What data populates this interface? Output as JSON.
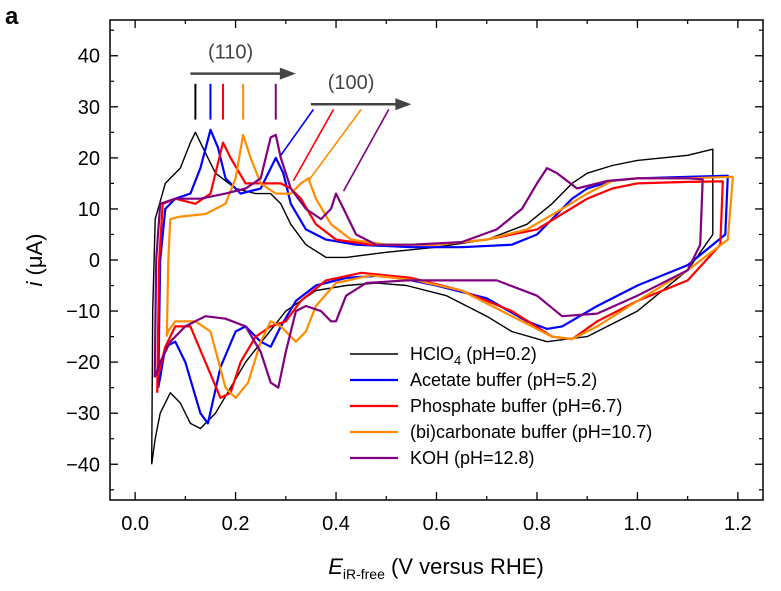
{
  "panel_label": "a",
  "chart_data": {
    "type": "line",
    "xlabel": {
      "main": "E",
      "subscript": "iR-free",
      "rest": " (V versus RHE)"
    },
    "ylabel": {
      "main": "i",
      "rest": " (μA)"
    },
    "xlim": [
      -0.05,
      1.25
    ],
    "ylim": [
      -47,
      47
    ],
    "xticks": [
      0.0,
      0.2,
      0.4,
      0.6,
      0.8,
      1.0,
      1.2
    ],
    "xtick_labels": [
      "0.0",
      "0.2",
      "0.4",
      "0.6",
      "0.8",
      "1.0",
      "1.2"
    ],
    "xminor": [
      0.1,
      0.3,
      0.5,
      0.7,
      0.9,
      1.1
    ],
    "yticks": [
      -40,
      -30,
      -20,
      -10,
      0,
      10,
      20,
      30,
      40
    ],
    "ytick_labels": [
      "−40",
      "−30",
      "−20",
      "−10",
      "0",
      "10",
      "20",
      "30",
      "40"
    ],
    "yminor": [
      -45,
      -35,
      -25,
      -15,
      -5,
      5,
      15,
      25,
      35,
      45
    ],
    "grid": false,
    "legend": {
      "placement": "bottom-right",
      "entries": [
        {
          "label": "HClO",
          "sub": "4",
          "rest": " (pH=0.2)",
          "color": "#000000"
        },
        {
          "label": "Acetate buffer (pH=5.2)",
          "sub": "",
          "rest": "",
          "color": "#0000ff"
        },
        {
          "label": "Phosphate buffer (pH=6.7)",
          "sub": "",
          "rest": "",
          "color": "#ff0000"
        },
        {
          "label": "(bi)carbonate buffer (pH=10.7)",
          "sub": "",
          "rest": "",
          "color": "#ff8c00"
        },
        {
          "label": "KOH (pH=12.8)",
          "sub": "",
          "rest": "",
          "color": "#800080"
        }
      ]
    },
    "annotations": [
      {
        "text": "(110)",
        "arrow_from": [
          0.11,
          36.5
        ],
        "arrow_to": [
          0.32,
          36.5
        ],
        "text_at": [
          0.19,
          39.5
        ]
      },
      {
        "text": "(100)",
        "arrow_from": [
          0.35,
          30.5
        ],
        "arrow_to": [
          0.55,
          30.5
        ],
        "text_at": [
          0.43,
          33.5
        ]
      }
    ],
    "peak_markers_110": [
      {
        "x": 0.12,
        "color": "#000000"
      },
      {
        "x": 0.15,
        "color": "#0000ff"
      },
      {
        "x": 0.175,
        "color": "#ff0000"
      },
      {
        "x": 0.215,
        "color": "#ff8c00"
      },
      {
        "x": 0.28,
        "color": "#800080"
      }
    ],
    "peak_markers_100": [
      {
        "from": [
          0.355,
          29.5
        ],
        "to": [
          0.29,
          20.5
        ],
        "color": "#0000ff"
      },
      {
        "from": [
          0.395,
          29.5
        ],
        "to": [
          0.315,
          15.5
        ],
        "color": "#ff0000"
      },
      {
        "from": [
          0.45,
          29.5
        ],
        "to": [
          0.345,
          15.5
        ],
        "color": "#ff8c00"
      },
      {
        "from": [
          0.505,
          29.5
        ],
        "to": [
          0.415,
          13.5
        ],
        "color": "#800080"
      }
    ],
    "series": [
      {
        "name": "HClO4 (pH=0.2)",
        "color": "#000000",
        "anodic": [
          [
            0.033,
            -40
          ],
          [
            0.035,
            -10
          ],
          [
            0.04,
            8
          ],
          [
            0.06,
            15
          ],
          [
            0.09,
            18
          ],
          [
            0.11,
            23
          ],
          [
            0.12,
            25
          ],
          [
            0.135,
            22
          ],
          [
            0.16,
            17
          ],
          [
            0.2,
            14
          ],
          [
            0.24,
            13
          ],
          [
            0.27,
            13
          ],
          [
            0.29,
            11
          ],
          [
            0.31,
            7
          ],
          [
            0.34,
            3
          ],
          [
            0.38,
            0.5
          ],
          [
            0.42,
            0.5
          ],
          [
            0.5,
            1.5
          ],
          [
            0.6,
            2.5
          ],
          [
            0.7,
            4
          ],
          [
            0.78,
            7
          ],
          [
            0.83,
            11
          ],
          [
            0.87,
            15
          ],
          [
            0.9,
            17
          ],
          [
            0.95,
            18.5
          ],
          [
            1.0,
            19.5
          ],
          [
            1.1,
            20.5
          ],
          [
            1.15,
            21.7
          ]
        ],
        "cathodic": [
          [
            1.15,
            21.7
          ],
          [
            1.15,
            5
          ],
          [
            1.1,
            -2
          ],
          [
            1.05,
            -6
          ],
          [
            1.0,
            -10
          ],
          [
            0.9,
            -15
          ],
          [
            0.82,
            -16
          ],
          [
            0.75,
            -14
          ],
          [
            0.7,
            -11
          ],
          [
            0.62,
            -7
          ],
          [
            0.54,
            -5
          ],
          [
            0.48,
            -4.5
          ],
          [
            0.42,
            -5
          ],
          [
            0.36,
            -6
          ],
          [
            0.3,
            -10
          ],
          [
            0.26,
            -15
          ],
          [
            0.22,
            -20
          ],
          [
            0.19,
            -25
          ],
          [
            0.16,
            -30
          ],
          [
            0.13,
            -33
          ],
          [
            0.11,
            -32
          ],
          [
            0.09,
            -28
          ],
          [
            0.07,
            -26
          ],
          [
            0.05,
            -30
          ],
          [
            0.04,
            -35
          ],
          [
            0.033,
            -40
          ]
        ]
      },
      {
        "name": "Acetate buffer (pH=5.2)",
        "color": "#0000ff",
        "anodic": [
          [
            0.046,
            -25
          ],
          [
            0.05,
            0
          ],
          [
            0.06,
            10
          ],
          [
            0.08,
            12
          ],
          [
            0.11,
            13
          ],
          [
            0.13,
            18
          ],
          [
            0.15,
            25.5
          ],
          [
            0.165,
            22
          ],
          [
            0.18,
            16
          ],
          [
            0.21,
            13
          ],
          [
            0.25,
            14
          ],
          [
            0.28,
            20
          ],
          [
            0.295,
            17
          ],
          [
            0.31,
            11
          ],
          [
            0.34,
            6
          ],
          [
            0.38,
            4
          ],
          [
            0.44,
            3
          ],
          [
            0.55,
            2.5
          ],
          [
            0.65,
            2.5
          ],
          [
            0.75,
            3
          ],
          [
            0.8,
            5
          ],
          [
            0.84,
            9
          ],
          [
            0.87,
            12
          ],
          [
            0.9,
            14
          ],
          [
            0.95,
            15.5
          ],
          [
            1.0,
            16
          ],
          [
            1.1,
            16.3
          ],
          [
            1.18,
            16.5
          ]
        ],
        "cathodic": [
          [
            1.18,
            16.5
          ],
          [
            1.175,
            5
          ],
          [
            1.1,
            -1
          ],
          [
            1.0,
            -5
          ],
          [
            0.92,
            -9
          ],
          [
            0.85,
            -13
          ],
          [
            0.82,
            -13.5
          ],
          [
            0.78,
            -12
          ],
          [
            0.7,
            -7.5
          ],
          [
            0.6,
            -5
          ],
          [
            0.5,
            -3
          ],
          [
            0.42,
            -3.5
          ],
          [
            0.36,
            -5
          ],
          [
            0.32,
            -8
          ],
          [
            0.29,
            -13
          ],
          [
            0.27,
            -17
          ],
          [
            0.25,
            -16
          ],
          [
            0.22,
            -13
          ],
          [
            0.2,
            -14
          ],
          [
            0.17,
            -21
          ],
          [
            0.145,
            -32
          ],
          [
            0.13,
            -30
          ],
          [
            0.1,
            -20
          ],
          [
            0.08,
            -16
          ],
          [
            0.06,
            -17
          ],
          [
            0.05,
            -23
          ],
          [
            0.046,
            -25
          ]
        ]
      },
      {
        "name": "Phosphate buffer (pH=6.7)",
        "color": "#ff0000",
        "anodic": [
          [
            0.044,
            -26
          ],
          [
            0.048,
            0
          ],
          [
            0.055,
            11
          ],
          [
            0.08,
            12
          ],
          [
            0.12,
            11
          ],
          [
            0.15,
            13
          ],
          [
            0.165,
            19
          ],
          [
            0.175,
            23
          ],
          [
            0.19,
            20
          ],
          [
            0.22,
            15
          ],
          [
            0.26,
            15
          ],
          [
            0.29,
            15
          ],
          [
            0.31,
            14
          ],
          [
            0.33,
            12
          ],
          [
            0.36,
            7
          ],
          [
            0.4,
            4
          ],
          [
            0.47,
            3
          ],
          [
            0.6,
            3
          ],
          [
            0.7,
            4
          ],
          [
            0.8,
            6
          ],
          [
            0.85,
            9
          ],
          [
            0.9,
            12
          ],
          [
            0.95,
            14
          ],
          [
            1.0,
            15
          ],
          [
            1.1,
            15.3
          ],
          [
            1.17,
            15.4
          ]
        ],
        "cathodic": [
          [
            1.17,
            15.4
          ],
          [
            1.165,
            3
          ],
          [
            1.1,
            -4
          ],
          [
            1.0,
            -8
          ],
          [
            0.92,
            -12
          ],
          [
            0.87,
            -15.5
          ],
          [
            0.83,
            -15
          ],
          [
            0.75,
            -10
          ],
          [
            0.65,
            -6
          ],
          [
            0.55,
            -3.5
          ],
          [
            0.45,
            -2.5
          ],
          [
            0.38,
            -4
          ],
          [
            0.33,
            -8
          ],
          [
            0.3,
            -12
          ],
          [
            0.27,
            -13
          ],
          [
            0.24,
            -15
          ],
          [
            0.21,
            -20
          ],
          [
            0.19,
            -26
          ],
          [
            0.17,
            -27
          ],
          [
            0.14,
            -20
          ],
          [
            0.11,
            -13
          ],
          [
            0.08,
            -13
          ],
          [
            0.06,
            -17
          ],
          [
            0.045,
            -23
          ],
          [
            0.044,
            -26
          ]
        ]
      },
      {
        "name": "(bi)carbonate buffer (pH=10.7)",
        "color": "#ff8c00",
        "anodic": [
          [
            0.063,
            -15
          ],
          [
            0.066,
            0
          ],
          [
            0.07,
            8
          ],
          [
            0.09,
            8.5
          ],
          [
            0.14,
            9
          ],
          [
            0.18,
            11
          ],
          [
            0.2,
            16
          ],
          [
            0.215,
            24.5
          ],
          [
            0.23,
            20
          ],
          [
            0.25,
            15
          ],
          [
            0.28,
            13
          ],
          [
            0.31,
            13
          ],
          [
            0.33,
            15
          ],
          [
            0.345,
            16
          ],
          [
            0.36,
            12
          ],
          [
            0.39,
            7
          ],
          [
            0.43,
            4
          ],
          [
            0.5,
            3
          ],
          [
            0.6,
            3
          ],
          [
            0.7,
            4
          ],
          [
            0.78,
            6
          ],
          [
            0.85,
            10
          ],
          [
            0.9,
            13
          ],
          [
            0.95,
            15.5
          ],
          [
            1.0,
            16
          ],
          [
            1.1,
            16
          ],
          [
            1.19,
            16.3
          ]
        ],
        "cathodic": [
          [
            1.19,
            16.3
          ],
          [
            1.18,
            4
          ],
          [
            1.1,
            -2
          ],
          [
            1.0,
            -8
          ],
          [
            0.92,
            -13
          ],
          [
            0.87,
            -15.5
          ],
          [
            0.83,
            -15
          ],
          [
            0.75,
            -11
          ],
          [
            0.65,
            -6
          ],
          [
            0.56,
            -4
          ],
          [
            0.47,
            -3
          ],
          [
            0.4,
            -4.5
          ],
          [
            0.36,
            -9
          ],
          [
            0.34,
            -14
          ],
          [
            0.32,
            -16
          ],
          [
            0.29,
            -13
          ],
          [
            0.27,
            -12
          ],
          [
            0.25,
            -16
          ],
          [
            0.225,
            -24
          ],
          [
            0.2,
            -27
          ],
          [
            0.18,
            -25
          ],
          [
            0.15,
            -14
          ],
          [
            0.12,
            -12
          ],
          [
            0.08,
            -12
          ],
          [
            0.065,
            -14
          ],
          [
            0.063,
            -15
          ]
        ]
      },
      {
        "name": "KOH (pH=12.8)",
        "color": "#800080",
        "anodic": [
          [
            0.039,
            -23
          ],
          [
            0.042,
            0
          ],
          [
            0.05,
            11
          ],
          [
            0.08,
            12
          ],
          [
            0.13,
            12
          ],
          [
            0.18,
            13
          ],
          [
            0.22,
            14
          ],
          [
            0.25,
            16
          ],
          [
            0.27,
            24
          ],
          [
            0.28,
            24.5
          ],
          [
            0.29,
            20
          ],
          [
            0.31,
            14
          ],
          [
            0.34,
            10
          ],
          [
            0.37,
            8
          ],
          [
            0.39,
            10
          ],
          [
            0.4,
            13
          ],
          [
            0.415,
            10
          ],
          [
            0.44,
            5
          ],
          [
            0.48,
            3
          ],
          [
            0.55,
            3
          ],
          [
            0.65,
            3.5
          ],
          [
            0.72,
            6
          ],
          [
            0.77,
            10
          ],
          [
            0.8,
            15
          ],
          [
            0.82,
            18
          ],
          [
            0.84,
            17
          ],
          [
            0.88,
            14
          ],
          [
            0.94,
            15.5
          ],
          [
            1.0,
            16
          ],
          [
            1.1,
            16
          ],
          [
            1.13,
            15.8
          ]
        ],
        "cathodic": [
          [
            1.13,
            15.8
          ],
          [
            1.125,
            3
          ],
          [
            1.1,
            -2
          ],
          [
            1.0,
            -7
          ],
          [
            0.92,
            -10.5
          ],
          [
            0.85,
            -11
          ],
          [
            0.8,
            -7
          ],
          [
            0.72,
            -4
          ],
          [
            0.62,
            -4
          ],
          [
            0.54,
            -4
          ],
          [
            0.46,
            -4.5
          ],
          [
            0.42,
            -7
          ],
          [
            0.4,
            -12
          ],
          [
            0.39,
            -12
          ],
          [
            0.37,
            -10
          ],
          [
            0.34,
            -9
          ],
          [
            0.32,
            -10
          ],
          [
            0.3,
            -18
          ],
          [
            0.285,
            -25
          ],
          [
            0.27,
            -24
          ],
          [
            0.25,
            -18
          ],
          [
            0.22,
            -13
          ],
          [
            0.18,
            -11.5
          ],
          [
            0.14,
            -11
          ],
          [
            0.1,
            -13
          ],
          [
            0.07,
            -16
          ],
          [
            0.05,
            -20
          ],
          [
            0.039,
            -23
          ]
        ]
      }
    ]
  }
}
